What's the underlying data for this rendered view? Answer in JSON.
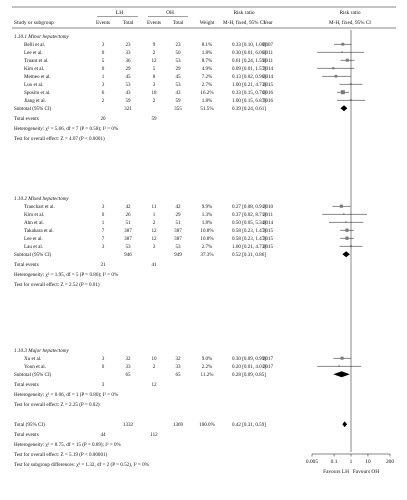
{
  "headers": {
    "study": "Study or subgroup",
    "group1": "LH",
    "group2": "OH",
    "events": "Events",
    "total": "Total",
    "weight": "Weight",
    "rr_title": "Risk ratio",
    "rr_method": "M-H, fixed, 95% CI",
    "year": "Year",
    "plot_title": "Risk ratio",
    "plot_method": "M-H, fixed, 95% CI"
  },
  "chart_data": {
    "type": "forest",
    "x_scale": "log",
    "xlim": [
      0.005,
      200
    ],
    "x_ticks": [
      "0.005",
      "0.1",
      "1",
      "10",
      "200"
    ],
    "favours_left": "Favours LH",
    "favours_right": "Favours OH",
    "subgroups": [
      {
        "title": "1.10.1 Minor hepatectomy",
        "studies": [
          {
            "name": "Belli et al.",
            "e1": "3",
            "t1": "23",
            "e2": "9",
            "t2": "23",
            "weight": "8.1%",
            "ci_text": "0.33 [0.10, 1.08]",
            "year": "2007",
            "rr": 0.33,
            "lo": 0.1,
            "hi": 1.08
          },
          {
            "name": "Lee et al.",
            "e1": "0",
            "t1": "33",
            "e2": "2",
            "t2": "50",
            "weight": "1.8%",
            "ci_text": "0.30 [0.01, 6.06]",
            "year": "2011",
            "rr": 0.3,
            "lo": 0.01,
            "hi": 6.06
          },
          {
            "name": "Truant et al.",
            "e1": "5",
            "t1": "36",
            "e2": "12",
            "t2": "53",
            "weight": "8.7%",
            "ci_text": "0.61 [0.24, 1.59]",
            "year": "2011",
            "rr": 0.61,
            "lo": 0.24,
            "hi": 1.59
          },
          {
            "name": "Kim et al.",
            "e1": "0",
            "t1": "29",
            "e2": "5",
            "t2": "29",
            "weight": "4.9%",
            "ci_text": "0.09 [0.01, 1.57]",
            "year": "2014",
            "rr": 0.09,
            "lo": 0.01,
            "hi": 1.57
          },
          {
            "name": "Memeo et al.",
            "e1": "1",
            "t1": "45",
            "e2": "8",
            "t2": "45",
            "weight": "7.2%",
            "ci_text": "0.13 [0.02, 0.96]",
            "year": "2014",
            "rr": 0.13,
            "lo": 0.02,
            "hi": 0.96
          },
          {
            "name": "Luo et al.",
            "e1": "3",
            "t1": "53",
            "e2": "3",
            "t2": "53",
            "weight": "2.7%",
            "ci_text": "1.00 [0.21, 4.73]",
            "year": "2015",
            "rr": 1.0,
            "lo": 0.21,
            "hi": 4.73
          },
          {
            "name": "Sposito et al.",
            "e1": "6",
            "t1": "43",
            "e2": "18",
            "t2": "43",
            "weight": "16.2%",
            "ci_text": "0.33 [0.15, 0.76]",
            "year": "2016",
            "rr": 0.33,
            "lo": 0.15,
            "hi": 0.76
          },
          {
            "name": "Jiang et al.",
            "e1": "2",
            "t1": "59",
            "e2": "2",
            "t2": "59",
            "weight": "1.8%",
            "ci_text": "1.00 [0.15, 6.87]",
            "year": "2016",
            "rr": 1.0,
            "lo": 0.15,
            "hi": 6.87
          }
        ],
        "subtotal_label": "Subtotal (95% CI)",
        "subtotal_t1": "321",
        "subtotal_t2": "355",
        "subtotal_weight": "51.5%",
        "subtotal_ci_text": "0.39 [0.24, 0.61]",
        "subtotal_rr": 0.39,
        "subtotal_lo": 0.24,
        "subtotal_hi": 0.61,
        "total_events_label": "Total events",
        "total_e1": "20",
        "total_e2": "59",
        "heterogeneity": "Heterogeneity: χ² = 5.66, df = 7 (P = 0.58); I² = 0%",
        "overall_effect": "Test for overall effect: Z = 4.07 (P < 0.0001)"
      },
      {
        "title": "1.10.2 Mixed hepatectomy",
        "studies": [
          {
            "name": "Tranchart et al.",
            "e1": "3",
            "t1": "42",
            "e2": "11",
            "t2": "42",
            "weight": "9.9%",
            "ci_text": "0.27 [0.08, 0.91]",
            "year": "2010",
            "rr": 0.27,
            "lo": 0.08,
            "hi": 0.91
          },
          {
            "name": "Kim et al.",
            "e1": "0",
            "t1": "26",
            "e2": "1",
            "t2": "29",
            "weight": "1.3%",
            "ci_text": "0.37 [0.02, 8.71]",
            "year": "2011",
            "rr": 0.37,
            "lo": 0.02,
            "hi": 8.71
          },
          {
            "name": "Ahn et al.",
            "e1": "1",
            "t1": "51",
            "e2": "2",
            "t2": "51",
            "weight": "1.8%",
            "ci_text": "0.50 [0.05, 5.34]",
            "year": "2014",
            "rr": 0.5,
            "lo": 0.05,
            "hi": 5.34
          },
          {
            "name": "Takahara et al.",
            "e1": "7",
            "t1": "387",
            "e2": "12",
            "t2": "387",
            "weight": "10.8%",
            "ci_text": "0.58 [0.23, 1.47]",
            "year": "2015",
            "rr": 0.58,
            "lo": 0.23,
            "hi": 1.47
          },
          {
            "name": "Lee et al.",
            "e1": "7",
            "t1": "387",
            "e2": "12",
            "t2": "387",
            "weight": "10.8%",
            "ci_text": "0.58 [0.23, 1.47]",
            "year": "2015",
            "rr": 0.58,
            "lo": 0.23,
            "hi": 1.47
          },
          {
            "name": "Lau et al.",
            "e1": "3",
            "t1": "53",
            "e2": "3",
            "t2": "53",
            "weight": "2.7%",
            "ci_text": "1.00 [0.21, 4.73]",
            "year": "2015",
            "rr": 1.0,
            "lo": 0.21,
            "hi": 4.73
          }
        ],
        "subtotal_label": "Subtotal (95% CI)",
        "subtotal_t1": "946",
        "subtotal_t2": "949",
        "subtotal_weight": "37.3%",
        "subtotal_ci_text": "0.52 [0.31, 0.86]",
        "subtotal_rr": 0.52,
        "subtotal_lo": 0.31,
        "subtotal_hi": 0.86,
        "total_events_label": "Total events",
        "total_e1": "21",
        "total_e2": "41",
        "heterogeneity": "Heterogeneity: χ² = 1.95, df = 5 (P = 0.86); I² = 0%",
        "overall_effect": "Test for overall effect: Z = 2.52 (P = 0.01)"
      },
      {
        "title": "1.10.3 Major hepatectomy",
        "studies": [
          {
            "name": "Xu et al.",
            "e1": "3",
            "t1": "32",
            "e2": "10",
            "t2": "32",
            "weight": "9.0%",
            "ci_text": "0.30 [0.09, 0.99]",
            "year": "2017",
            "rr": 0.3,
            "lo": 0.09,
            "hi": 0.99
          },
          {
            "name": "Yoon et al.",
            "e1": "0",
            "t1": "33",
            "e2": "2",
            "t2": "33",
            "weight": "2.2%",
            "ci_text": "0.20 [0.01, 4.01]",
            "year": "2017",
            "rr": 0.2,
            "lo": 0.01,
            "hi": 4.01
          }
        ],
        "subtotal_label": "Subtotal (95% CI)",
        "subtotal_t1": "65",
        "subtotal_t2": "65",
        "subtotal_weight": "11.2%",
        "subtotal_ci_text": "0.28 [0.09, 0.85]",
        "subtotal_rr": 0.28,
        "subtotal_lo": 0.09,
        "subtotal_hi": 0.85,
        "total_events_label": "Total events",
        "total_e1": "3",
        "total_e2": "12",
        "heterogeneity": "Heterogeneity: χ² = 0.06, df = 1 (P = 0.80); I² = 0%",
        "overall_effect": "Test for overall effect: Z = 2.25 (P = 0.02)"
      }
    ],
    "overall": {
      "label": "Total (95% CI)",
      "t1": "1332",
      "t2": "1369",
      "weight": "100.0%",
      "ci_text": "0.42 [0.31, 0.59]",
      "rr": 0.42,
      "lo": 0.31,
      "hi": 0.59,
      "total_events_label": "Total events",
      "e1": "44",
      "e2": "112",
      "heterogeneity": "Heterogeneity: χ² = 8.75, df = 15 (P = 0.89); I² = 0%",
      "overall_effect": "Test for overall effect: Z = 5.19 (P < 0.00001)",
      "subgroup_diff": "Test for subgroup differences: χ² = 1.32, df = 2 (P = 0.52), I² = 0%"
    }
  }
}
